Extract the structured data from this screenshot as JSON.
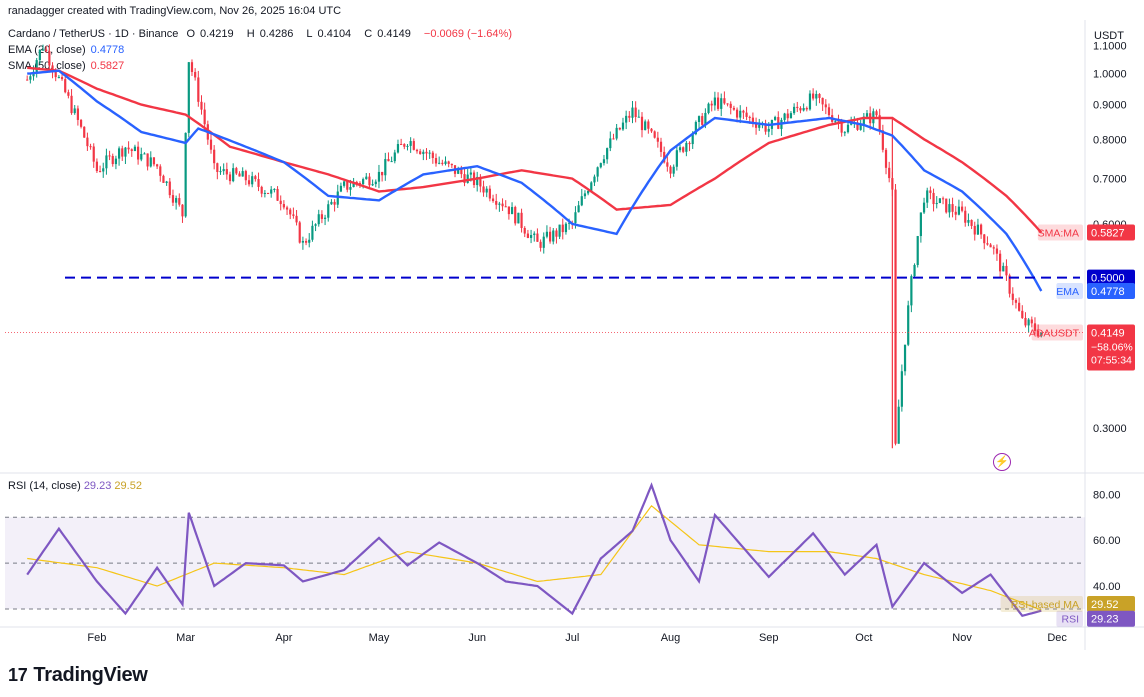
{
  "header": {
    "attribution": "ranadagger created with TradingView.com, Nov 26, 2025 16:04 UTC"
  },
  "legend": {
    "symbol": "Cardano / TetherUS · 1D · Binance",
    "open_label": "O",
    "open": "0.4219",
    "high_label": "H",
    "high": "0.4286",
    "low_label": "L",
    "low": "0.4104",
    "close_label": "C",
    "close": "0.4149",
    "change": "−0.0069 (−1.64%)",
    "ema_label": "EMA (20, close)",
    "ema_value": "0.4778",
    "sma_label": "SMA (50, close)",
    "sma_value": "0.5827"
  },
  "rsi_legend": {
    "label": "RSI (14, close)",
    "rsi_value": "29.23",
    "rsi_ma_value": "29.52"
  },
  "currency": "USDT",
  "price_axis_labels": [
    "1.1000",
    "1.0000",
    "0.9000",
    "0.8000",
    "0.7000",
    "0.6000",
    "0.3000"
  ],
  "price_tags": {
    "sma": {
      "label": "SMA:MA",
      "value": "0.5827",
      "color": "#f23645"
    },
    "level": {
      "value": "0.5000",
      "color": "#0000cc"
    },
    "ema": {
      "label": "EMA",
      "value": "0.4778",
      "color": "#2962ff"
    },
    "last": {
      "label": "ADAUSDT",
      "value": "0.4149",
      "change": "−58.06%",
      "countdown": "07:55:34",
      "color": "#f23645"
    }
  },
  "rsi_axis_labels": [
    "80.00",
    "60.00",
    "40.00"
  ],
  "rsi_tags": {
    "ma": {
      "label": "RSI-based MA",
      "value": "29.52",
      "color": "#f5c518"
    },
    "rsi": {
      "label": "RSI",
      "value": "29.23",
      "color": "#7e57c2"
    }
  },
  "time_axis_labels": [
    "Feb",
    "Mar",
    "Apr",
    "May",
    "Jun",
    "Jul",
    "Aug",
    "Sep",
    "Oct",
    "Nov",
    "Dec"
  ],
  "colors": {
    "up": "#089981",
    "down": "#f23645",
    "ema": "#2962ff",
    "sma": "#f23645",
    "rsi": "#7e57c2",
    "rsi_ma": "#f5c518",
    "level": "#0000cc"
  },
  "branding": "TradingView",
  "chart_data": [
    {
      "type": "line",
      "title": "Cardano / TetherUS · 1D · Binance",
      "ylabel": "USDT",
      "ylim": [
        0.26,
        1.2
      ],
      "x": [
        "Feb",
        "Mar",
        "Apr",
        "May",
        "Jun",
        "Jul",
        "Aug",
        "Sep",
        "Oct",
        "Nov",
        "Dec"
      ],
      "horizontal_line": 0.5,
      "series": [
        {
          "name": "EMA (20, close)",
          "x": [
            "Jan 10",
            "Jan 20",
            "Feb 1",
            "Feb 15",
            "Mar 1",
            "Mar 5",
            "Mar 20",
            "Apr 1",
            "Apr 15",
            "May 1",
            "May 15",
            "Jun 1",
            "Jun 15",
            "Jul 1",
            "Jul 15",
            "Aug 1",
            "Aug 15",
            "Sep 1",
            "Sep 20",
            "Oct 1",
            "Oct 10",
            "Oct 20",
            "Nov 1",
            "Nov 15",
            "Nov 26"
          ],
          "values": [
            1.0,
            1.01,
            0.91,
            0.82,
            0.79,
            0.83,
            0.78,
            0.74,
            0.66,
            0.65,
            0.71,
            0.73,
            0.69,
            0.6,
            0.58,
            0.77,
            0.86,
            0.84,
            0.86,
            0.84,
            0.81,
            0.72,
            0.67,
            0.58,
            0.4778
          ]
        },
        {
          "name": "SMA (50, close)",
          "x": [
            "Jan 10",
            "Jan 20",
            "Feb 1",
            "Feb 15",
            "Mar 1",
            "Mar 15",
            "Apr 1",
            "Apr 15",
            "May 1",
            "May 15",
            "Jun 1",
            "Jun 15",
            "Jul 1",
            "Jul 15",
            "Aug 1",
            "Aug 15",
            "Sep 1",
            "Sep 20",
            "Oct 1",
            "Oct 10",
            "Oct 20",
            "Nov 1",
            "Nov 15",
            "Nov 26"
          ],
          "values": [
            1.02,
            1.01,
            0.95,
            0.9,
            0.87,
            0.78,
            0.74,
            0.71,
            0.67,
            0.68,
            0.7,
            0.72,
            0.7,
            0.63,
            0.64,
            0.7,
            0.79,
            0.84,
            0.86,
            0.86,
            0.8,
            0.74,
            0.66,
            0.5827
          ]
        },
        {
          "name": "ADAUSDT",
          "x": [
            "Jan 10",
            "Jan 15",
            "Jan 20",
            "Feb 1",
            "Feb 10",
            "Feb 20",
            "Feb 28",
            "Mar 2",
            "Mar 10",
            "Mar 20",
            "Apr 1",
            "Apr 7",
            "Apr 20",
            "May 1",
            "May 10",
            "May 20",
            "Jun 1",
            "Jun 10",
            "Jun 20",
            "Jul 1",
            "Jul 10",
            "Jul 20",
            "Aug 1",
            "Aug 15",
            "Sep 1",
            "Sep 15",
            "Sep 25",
            "Oct 5",
            "Oct 10",
            "Oct 11",
            "Oct 20",
            "Nov 1",
            "Nov 10",
            "Nov 20",
            "Nov 26"
          ],
          "values": [
            0.98,
            1.1,
            0.98,
            0.72,
            0.78,
            0.73,
            0.62,
            1.05,
            0.72,
            0.7,
            0.65,
            0.56,
            0.68,
            0.71,
            0.8,
            0.74,
            0.69,
            0.64,
            0.56,
            0.6,
            0.75,
            0.88,
            0.73,
            0.91,
            0.83,
            0.92,
            0.83,
            0.87,
            0.66,
            0.28,
            0.66,
            0.62,
            0.56,
            0.43,
            0.4149
          ]
        }
      ]
    },
    {
      "type": "line",
      "title": "RSI (14, close)",
      "ylim": [
        23,
        88
      ],
      "reference_lines": [
        70,
        50,
        30
      ],
      "series": [
        {
          "name": "RSI",
          "x": [
            "Jan 10",
            "Jan 20",
            "Feb 1",
            "Feb 10",
            "Feb 20",
            "Feb 28",
            "Mar 2",
            "Mar 10",
            "Mar 20",
            "Apr 1",
            "Apr 7",
            "Apr 20",
            "May 1",
            "May 10",
            "May 20",
            "Jun 1",
            "Jun 10",
            "Jun 20",
            "Jul 1",
            "Jul 10",
            "Jul 20",
            "Jul 26",
            "Aug 1",
            "Aug 10",
            "Aug 15",
            "Sep 1",
            "Sep 15",
            "Sep 25",
            "Oct 5",
            "Oct 10",
            "Oct 20",
            "Nov 1",
            "Nov 10",
            "Nov 20",
            "Nov 26"
          ],
          "values": [
            45,
            65,
            42,
            28,
            48,
            32,
            72,
            40,
            50,
            49,
            42,
            47,
            61,
            49,
            59,
            50,
            42,
            40,
            28,
            52,
            64,
            84,
            60,
            42,
            71,
            44,
            63,
            45,
            58,
            31,
            50,
            37,
            45,
            27,
            29.23
          ]
        },
        {
          "name": "RSI-based MA",
          "x": [
            "Jan 10",
            "Feb 1",
            "Feb 20",
            "Mar 10",
            "Apr 1",
            "Apr 20",
            "May 10",
            "Jun 1",
            "Jun 20",
            "Jul 10",
            "Jul 26",
            "Aug 10",
            "Sep 1",
            "Sep 20",
            "Oct 5",
            "Oct 20",
            "Nov 10",
            "Nov 26"
          ],
          "values": [
            52,
            48,
            40,
            50,
            48,
            45,
            55,
            50,
            42,
            45,
            75,
            58,
            55,
            55,
            52,
            45,
            38,
            29.52
          ]
        }
      ]
    }
  ]
}
